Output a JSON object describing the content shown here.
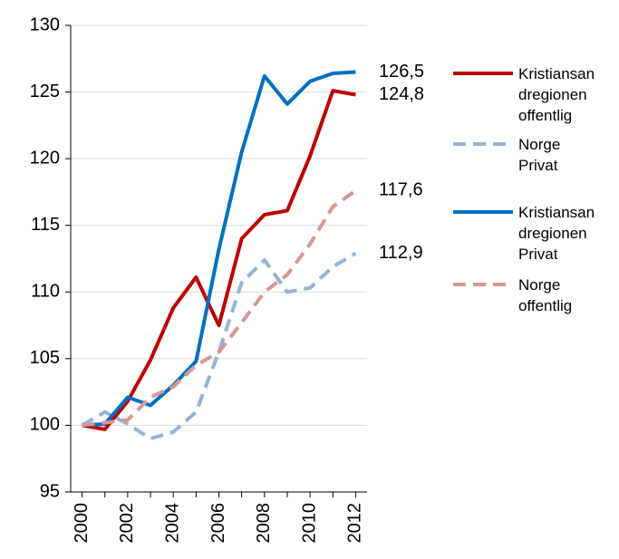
{
  "chart_data": {
    "type": "line",
    "x": [
      2000,
      2001,
      2002,
      2003,
      2004,
      2005,
      2006,
      2007,
      2008,
      2009,
      2010,
      2011,
      2012
    ],
    "xlim": [
      1999.5,
      2012.5
    ],
    "xticks": [
      2000,
      2002,
      2004,
      2006,
      2008,
      2010,
      2012
    ],
    "ylim": [
      95,
      130
    ],
    "yticks": [
      95,
      100,
      105,
      110,
      115,
      120,
      125,
      130
    ],
    "grid": true,
    "legend": "right",
    "series": [
      {
        "name": "Kristiansandregionen offentlig",
        "color": "#c00000",
        "dashed": false,
        "values": [
          100,
          99.7,
          101.8,
          104.9,
          108.8,
          111.1,
          107.5,
          114.0,
          115.8,
          116.1,
          120.2,
          125.1,
          124.8
        ],
        "value_labels": [
          null,
          null,
          null,
          null,
          null,
          null,
          null,
          null,
          null,
          null,
          null,
          null,
          "124,8"
        ]
      },
      {
        "name": "Norge Privat",
        "color": "#95b3d7",
        "dashed": true,
        "values": [
          100,
          101.0,
          100.1,
          99.0,
          99.5,
          101.0,
          105.5,
          110.7,
          112.4,
          110.0,
          110.3,
          111.9,
          112.9
        ],
        "value_labels": [
          null,
          null,
          null,
          null,
          null,
          null,
          null,
          null,
          null,
          null,
          null,
          null,
          "112,9"
        ]
      },
      {
        "name": "Kristiansandregionen Privat",
        "color": "#0070c0",
        "dashed": false,
        "values": [
          100,
          100.1,
          102.1,
          101.5,
          103.0,
          104.8,
          113.2,
          120.5,
          126.2,
          124.1,
          125.8,
          126.4,
          126.5
        ],
        "value_labels": [
          null,
          null,
          null,
          null,
          null,
          null,
          null,
          null,
          null,
          null,
          null,
          null,
          "126,5"
        ]
      },
      {
        "name": "Norge offentlig",
        "color": "#d99594",
        "dashed": true,
        "values": [
          100,
          100.2,
          100.4,
          102.1,
          102.9,
          104.5,
          105.5,
          107.7,
          110.0,
          111.3,
          113.6,
          116.4,
          117.6
        ],
        "value_labels": [
          null,
          null,
          null,
          null,
          null,
          null,
          null,
          null,
          null,
          null,
          null,
          null,
          "117,6"
        ]
      }
    ]
  }
}
